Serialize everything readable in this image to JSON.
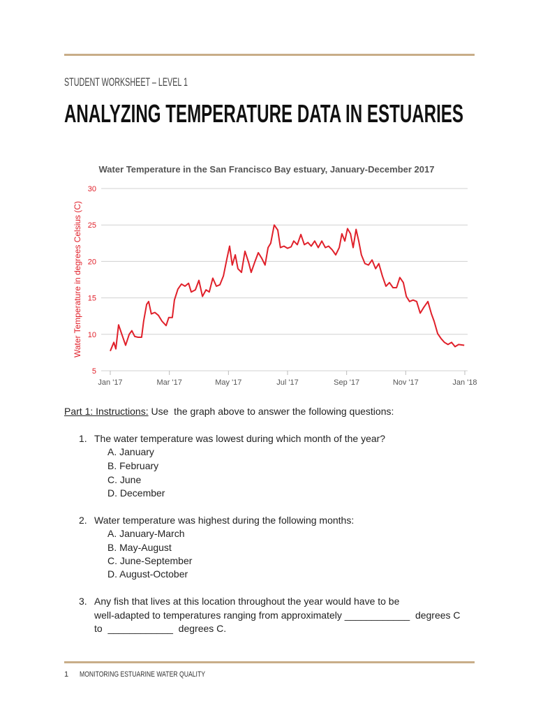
{
  "header": {
    "subtitle": "STUDENT WORKSHEET – LEVEL 1",
    "title": "ANALYZING TEMPERATURE DATA IN ESTUARIES"
  },
  "chart_data": {
    "type": "line",
    "title": "Water Temperature in the San Francisco Bay estuary, January-December 2017",
    "y_label": "Water Temperature in degrees Celsius (C)",
    "color": "#e0202a",
    "grid": true,
    "x": [
      0,
      0.12,
      0.19,
      0.28,
      0.4,
      0.52,
      0.64,
      0.73,
      0.83,
      0.94,
      1.06,
      1.13,
      1.23,
      1.3,
      1.39,
      1.51,
      1.63,
      1.75,
      1.89,
      1.98,
      2.1,
      2.17,
      2.29,
      2.41,
      2.53,
      2.65,
      2.74,
      2.88,
      3.0,
      3.12,
      3.24,
      3.35,
      3.47,
      3.59,
      3.71,
      3.83,
      3.95,
      4.04,
      4.13,
      4.23,
      4.32,
      4.44,
      4.56,
      4.68,
      4.77,
      4.89,
      5.01,
      5.13,
      5.24,
      5.34,
      5.43,
      5.55,
      5.67,
      5.76,
      5.88,
      6.0,
      6.12,
      6.21,
      6.33,
      6.45,
      6.57,
      6.69,
      6.8,
      6.92,
      7.04,
      7.16,
      7.28,
      7.39,
      7.51,
      7.63,
      7.75,
      7.84,
      7.94,
      8.03,
      8.13,
      8.22,
      8.32,
      8.41,
      8.5,
      8.62,
      8.74,
      8.86,
      8.98,
      9.09,
      9.21,
      9.33,
      9.45,
      9.57,
      9.69,
      9.8,
      9.92,
      10.02,
      10.13,
      10.25,
      10.37,
      10.49,
      10.61,
      10.75,
      10.87,
      10.96,
      11.08,
      11.2,
      11.31,
      11.43,
      11.55,
      11.67,
      11.79,
      11.98
    ],
    "values": [
      7.7,
      8.9,
      8,
      11.3,
      9.9,
      8.5,
      10,
      10.5,
      9.7,
      9.6,
      9.6,
      11.8,
      14.1,
      14.5,
      12.8,
      13,
      12.6,
      11.8,
      11.2,
      12.3,
      12.3,
      14.7,
      16.2,
      16.9,
      16.6,
      17,
      15.8,
      16.1,
      17.4,
      15.2,
      16.1,
      15.8,
      17.7,
      16.6,
      16.8,
      18,
      20.4,
      22.1,
      19.5,
      20.9,
      19,
      18.5,
      21.4,
      19.9,
      18.5,
      19.9,
      21.2,
      20.4,
      19.5,
      21.9,
      22.5,
      25,
      24.3,
      21.9,
      22.1,
      21.8,
      22,
      22.8,
      22.3,
      23.7,
      22.3,
      22.6,
      22.1,
      22.8,
      21.9,
      22.8,
      21.9,
      22.1,
      21.6,
      20.9,
      21.9,
      23.8,
      22.8,
      24.5,
      23.8,
      21.9,
      24.4,
      22.8,
      20.9,
      19.7,
      19.5,
      20.2,
      19,
      19.7,
      18,
      16.6,
      17.1,
      16.4,
      16.4,
      17.8,
      17.1,
      15.2,
      14.5,
      14.7,
      14.5,
      12.9,
      13.7,
      14.5,
      12.8,
      11.8,
      10.1,
      9.4,
      8.9,
      8.6,
      8.9,
      8.3,
      8.6,
      8.5
    ],
    "xlim": [
      0,
      12
    ],
    "ylim": [
      5,
      30
    ],
    "yticks": [
      5,
      10,
      15,
      20,
      25,
      30
    ],
    "xticks": [
      {
        "value": 0,
        "label": "Jan '17"
      },
      {
        "value": 2,
        "label": "Mar '17"
      },
      {
        "value": 4,
        "label": "May '17"
      },
      {
        "value": 6,
        "label": "Jul '17"
      },
      {
        "value": 8,
        "label": "Sep '17"
      },
      {
        "value": 10,
        "label": "Nov '17"
      },
      {
        "value": 12,
        "label": "Jan '18"
      }
    ]
  },
  "instructions": {
    "label": "Part 1: Instructions:",
    "text": " Use  the graph above to answer the following questions:"
  },
  "questions": [
    {
      "number": "1.",
      "lines": [
        "The water temperature was lowest during which month of the year?"
      ],
      "options": [
        "A. January",
        "B. February",
        "C. June",
        "D. December"
      ]
    },
    {
      "number": "2.",
      "lines": [
        "Water temperature was highest during the following months:"
      ],
      "options": [
        "A. January-March",
        "B. May-August",
        "C. June-September",
        "D. August-October"
      ]
    },
    {
      "number": "3.",
      "lines": [
        "Any fish that lives at this location throughout the year would have to be",
        "well-adapted to temperatures ranging from approximately ____________  degrees C",
        "to  ____________  degrees C."
      ]
    }
  ],
  "footer": {
    "page": "1",
    "text": "MONITORING ESTUARINE WATER QUALITY"
  }
}
